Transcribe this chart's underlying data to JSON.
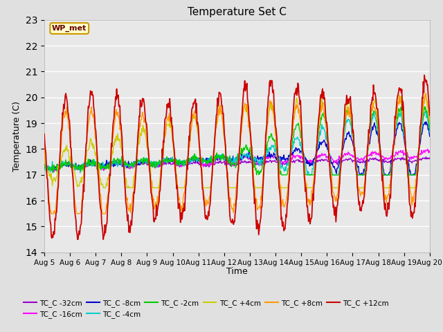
{
  "title": "Temperature Set C",
  "xlabel": "Time",
  "ylabel": "Temperature (C)",
  "ylim": [
    14.0,
    23.0
  ],
  "yticks": [
    14.0,
    15.0,
    16.0,
    17.0,
    18.0,
    19.0,
    20.0,
    21.0,
    22.0,
    23.0
  ],
  "xtick_labels": [
    "Aug 5",
    "Aug 6",
    "Aug 7",
    "Aug 8",
    "Aug 9",
    "Aug 10",
    "Aug 11",
    "Aug 12",
    "Aug 13",
    "Aug 14",
    "Aug 15",
    "Aug 16",
    "Aug 17",
    "Aug 18",
    "Aug 19",
    "Aug 20"
  ],
  "series_colors": {
    "TC_C -32cm": "#9900cc",
    "TC_C -16cm": "#ff00ff",
    "TC_C -8cm": "#0000cc",
    "TC_C -4cm": "#00cccc",
    "TC_C -2cm": "#00cc00",
    "TC_C +4cm": "#cccc00",
    "TC_C +8cm": "#ff9900",
    "TC_C +12cm": "#cc0000"
  },
  "wp_met_label": "WP_met",
  "fig_bg_color": "#e0e0e0",
  "plot_bg_color": "#e8e8e8",
  "grid_color": "#ffffff"
}
